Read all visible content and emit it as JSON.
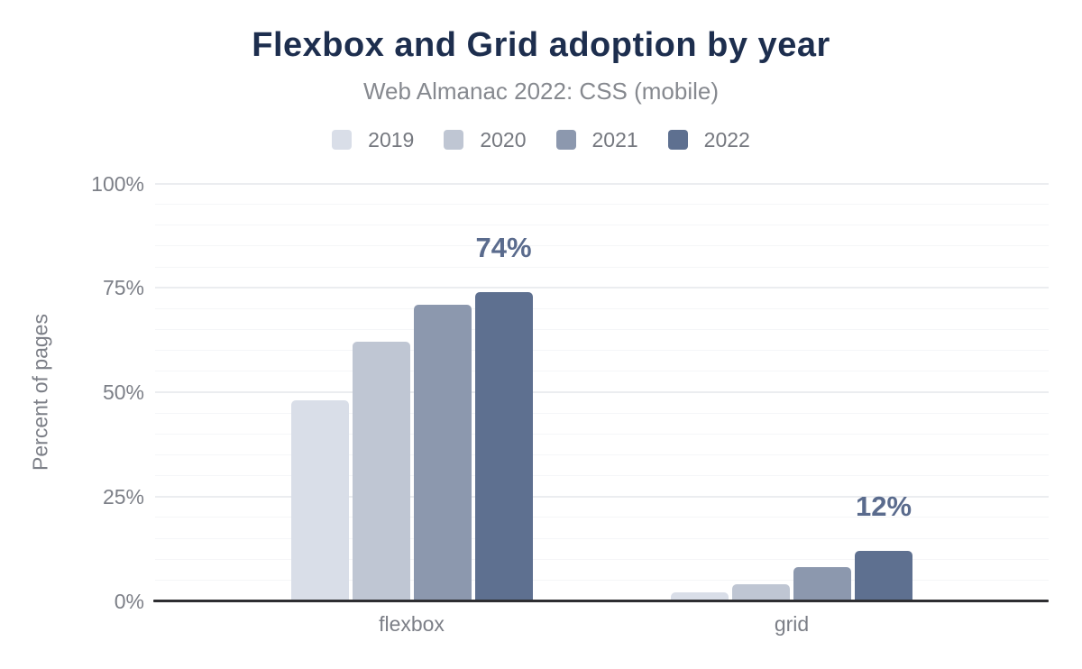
{
  "colors": {
    "title_color": "#1d2e4e",
    "subtitle_color": "#86898f",
    "axis_text_color": "#7c7f87",
    "annotation_color": "#5a6b8d",
    "axis_line_color": "#2e2e31",
    "grid_major_color": "#ebedf0",
    "grid_minor_color": "#f5f6f8"
  },
  "chart_data": {
    "type": "bar",
    "title": "Flexbox and Grid adoption by year",
    "subtitle": "Web Almanac 2022: CSS (mobile)",
    "categories": [
      "flexbox",
      "grid"
    ],
    "series": [
      {
        "name": "2019",
        "color": "#d9dee8",
        "values": [
          48,
          2
        ]
      },
      {
        "name": "2020",
        "color": "#bfc6d3",
        "values": [
          62,
          4
        ]
      },
      {
        "name": "2021",
        "color": "#8c98ae",
        "values": [
          71,
          8
        ]
      },
      {
        "name": "2022",
        "color": "#5e7090",
        "values": [
          74,
          12
        ]
      }
    ],
    "xlabel": "",
    "ylabel": "Percent of pages",
    "ylim": [
      0,
      100
    ],
    "yticks": [
      {
        "value": 0,
        "label": "0%"
      },
      {
        "value": 25,
        "label": "25%"
      },
      {
        "value": 50,
        "label": "50%"
      },
      {
        "value": 75,
        "label": "75%"
      },
      {
        "value": 100,
        "label": "100%"
      }
    ],
    "grid": {
      "minor_step": 5,
      "major_step": 25,
      "shown": true
    },
    "legend_position": "top",
    "annotations": [
      {
        "category": "flexbox",
        "series": "2022",
        "text": "74%"
      },
      {
        "category": "grid",
        "series": "2022",
        "text": "12%"
      }
    ]
  }
}
